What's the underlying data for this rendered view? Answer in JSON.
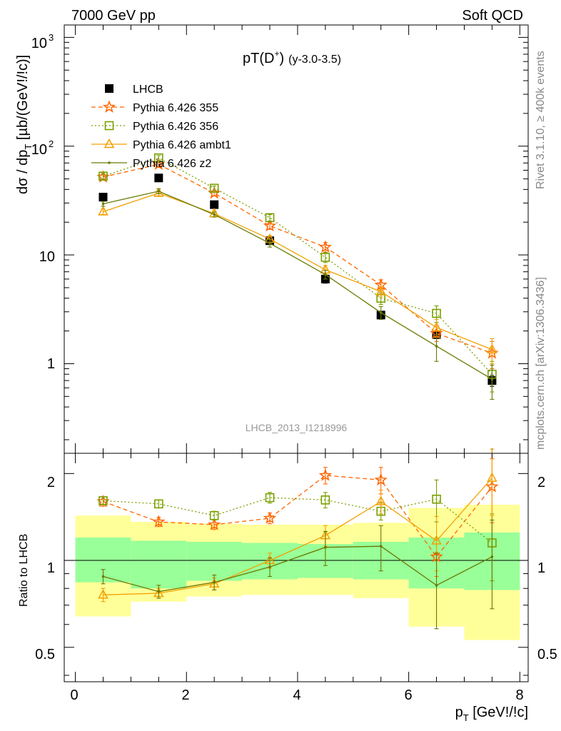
{
  "header": {
    "left": "7000 GeV pp",
    "right": "Soft QCD"
  },
  "side_labels": {
    "events": "Rivet 3.1.10, ≥ 400k events",
    "source": "mcplots.cern.ch [arXiv:1306.3436]"
  },
  "chart_data": [
    {
      "type": "scatter",
      "title": "pT(D⁺) (y-3.0-3.5)",
      "title_main": "pT(D",
      "title_sup": "+",
      "title_close": ")",
      "title_sub": "(y-3.0-3.5)",
      "ylabel": "dσ / dp_T [µb/(GeV!/!c)]",
      "ylabel_main": "dσ / dp",
      "ylabel_sub": "T",
      "ylabel_rest": " [µb/(GeV!/!c)]",
      "y_scale": "log",
      "ylim": [
        0.15,
        1300
      ],
      "xlim": [
        -0.2,
        8.15
      ],
      "y_ticks": [
        "1",
        "10",
        "10²",
        "10³"
      ],
      "y_tick_values": [
        1,
        10,
        100,
        1000
      ],
      "y_tick_labels": {
        "one": "1",
        "ten": "10",
        "hundred_base": "10",
        "hundred_exp": "2",
        "thousand_base": "10",
        "thousand_exp": "3"
      },
      "watermark": "LHCB_2013_I1218996",
      "legend_position": "top-left",
      "x": [
        0.5,
        1.5,
        2.5,
        3.5,
        4.5,
        5.5,
        6.5,
        7.5
      ],
      "series": [
        {
          "name": "LHCB",
          "color": "#000000",
          "marker": "square-filled",
          "line": "none",
          "values": [
            34,
            51,
            29,
            13.5,
            6.0,
            2.8,
            1.85,
            0.7
          ],
          "errors": [
            0,
            0,
            0,
            0,
            0.5,
            0,
            0.1,
            0.08
          ]
        },
        {
          "name": "Pythia 6.426 355",
          "color": "#ff6600",
          "marker": "star",
          "line": "dashed",
          "values": [
            52,
            68,
            37,
            18.5,
            11.8,
            5.3,
            1.9,
            1.25
          ],
          "errors": [
            3,
            4,
            2,
            1.3,
            1.2,
            0.6,
            0.3,
            0.35
          ]
        },
        {
          "name": "Pythia 6.426 356",
          "color": "#7aa000",
          "marker": "square-open",
          "line": "dotted",
          "values": [
            53,
            78,
            41,
            22,
            9.5,
            4.0,
            2.9,
            0.8
          ],
          "errors": [
            3,
            4,
            2,
            1.5,
            1.0,
            0.5,
            0.5,
            0.25
          ]
        },
        {
          "name": "Pythia 6.426 ambt1",
          "color": "#f2a000",
          "marker": "triangle-open",
          "line": "solid",
          "values": [
            25,
            37,
            24,
            14,
            7.3,
            4.6,
            2.15,
            1.35
          ],
          "errors": [
            1.5,
            2,
            1.5,
            1,
            0.7,
            0.5,
            0.4,
            0.35
          ]
        },
        {
          "name": "Pythia 6.426 z2",
          "color": "#6a7a00",
          "marker": "dot",
          "line": "solid",
          "values": [
            29.5,
            38.5,
            23.5,
            12.8,
            6.6,
            2.95,
            1.45,
            0.72
          ],
          "errors": [
            1.5,
            2,
            1.2,
            1,
            0.6,
            0.4,
            0.4,
            0.25
          ]
        }
      ]
    },
    {
      "type": "scatter",
      "title": "",
      "ylabel": "Ratio to LHCB",
      "xlabel": "p_T [GeV!/!c]",
      "xlabel_main": "p",
      "xlabel_sub": "T",
      "xlabel_rest": " [GeV!/!c]",
      "y_scale": "log",
      "ylim": [
        0.38,
        2.35
      ],
      "xlim": [
        -0.2,
        8.15
      ],
      "x_ticks": [
        "0",
        "2",
        "4",
        "6",
        "8"
      ],
      "x_tick_values": [
        0,
        2,
        4,
        6,
        8
      ],
      "y_ticks": [
        "0.5",
        "1",
        "2"
      ],
      "y_tick_values": [
        0.5,
        1,
        2
      ],
      "x": [
        0.5,
        1.5,
        2.5,
        3.5,
        4.5,
        5.5,
        6.5,
        7.5
      ],
      "bin_edges": [
        0,
        1,
        2,
        3,
        4,
        5,
        6,
        7,
        8
      ],
      "band_1sigma": {
        "color": "#99ff99",
        "low": [
          0.84,
          0.8,
          0.85,
          0.86,
          0.87,
          0.86,
          0.8,
          0.79
        ],
        "high": [
          1.2,
          1.17,
          1.16,
          1.15,
          1.14,
          1.16,
          1.2,
          1.25
        ]
      },
      "band_2sigma": {
        "color": "#ffff99",
        "low": [
          0.64,
          0.72,
          0.75,
          0.76,
          0.76,
          0.74,
          0.59,
          0.53
        ],
        "high": [
          1.43,
          1.36,
          1.34,
          1.33,
          1.33,
          1.35,
          1.52,
          1.56
        ]
      },
      "series": [
        {
          "name": "Pythia 6.426 355",
          "color": "#ff6600",
          "marker": "star",
          "line": "dashed",
          "values": [
            1.6,
            1.36,
            1.33,
            1.4,
            1.97,
            1.9,
            1.03,
            1.8
          ],
          "errors": [
            0.06,
            0.05,
            0.05,
            0.06,
            0.13,
            0.2,
            0.15,
            0.45
          ]
        },
        {
          "name": "Pythia 6.426 356",
          "color": "#7aa000",
          "marker": "square-open",
          "line": "dotted",
          "values": [
            1.61,
            1.57,
            1.43,
            1.65,
            1.62,
            1.48,
            1.63,
            1.15
          ],
          "errors": [
            0.05,
            0.05,
            0.05,
            0.07,
            0.1,
            0.1,
            0.27,
            0.3
          ]
        },
        {
          "name": "Pythia 6.426 ambt1",
          "color": "#f2a000",
          "marker": "triangle-open",
          "line": "solid",
          "values": [
            0.76,
            0.77,
            0.83,
            1.0,
            1.22,
            1.6,
            1.17,
            1.93
          ],
          "errors": [
            0.04,
            0.03,
            0.04,
            0.06,
            0.1,
            0.15,
            0.25,
            0.5
          ]
        },
        {
          "name": "Pythia 6.426 z2",
          "color": "#6a7a00",
          "marker": "dot",
          "line": "solid",
          "values": [
            0.88,
            0.78,
            0.84,
            0.95,
            1.11,
            1.12,
            0.82,
            1.03
          ],
          "errors": [
            0.05,
            0.04,
            0.05,
            0.07,
            0.15,
            0.2,
            0.24,
            0.35
          ]
        }
      ]
    }
  ]
}
